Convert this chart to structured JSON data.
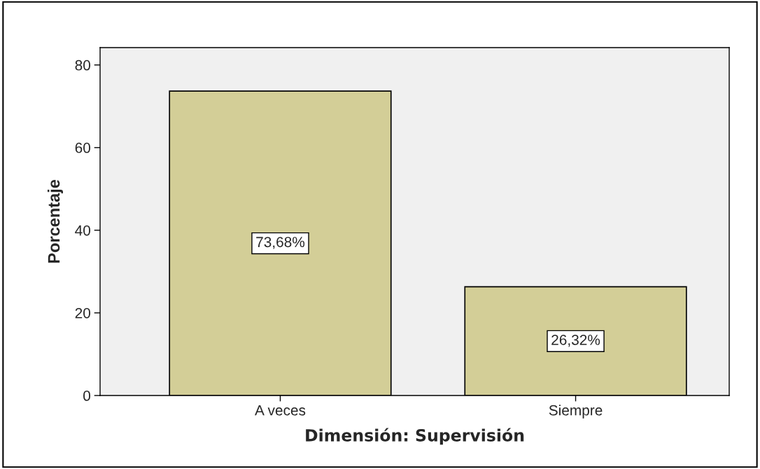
{
  "chart_data": {
    "type": "bar",
    "xlabel": "Dimensión: Supervisión",
    "ylabel": "Porcentaje",
    "categories": [
      "A veces",
      "Siempre"
    ],
    "values": [
      73.68,
      26.32
    ],
    "value_labels": [
      "73,68%",
      "26,32%"
    ],
    "color": "#d3ce97",
    "ylim": [
      0,
      84.2
    ],
    "yticks": [
      0,
      20,
      40,
      60,
      80
    ],
    "grid": false
  }
}
